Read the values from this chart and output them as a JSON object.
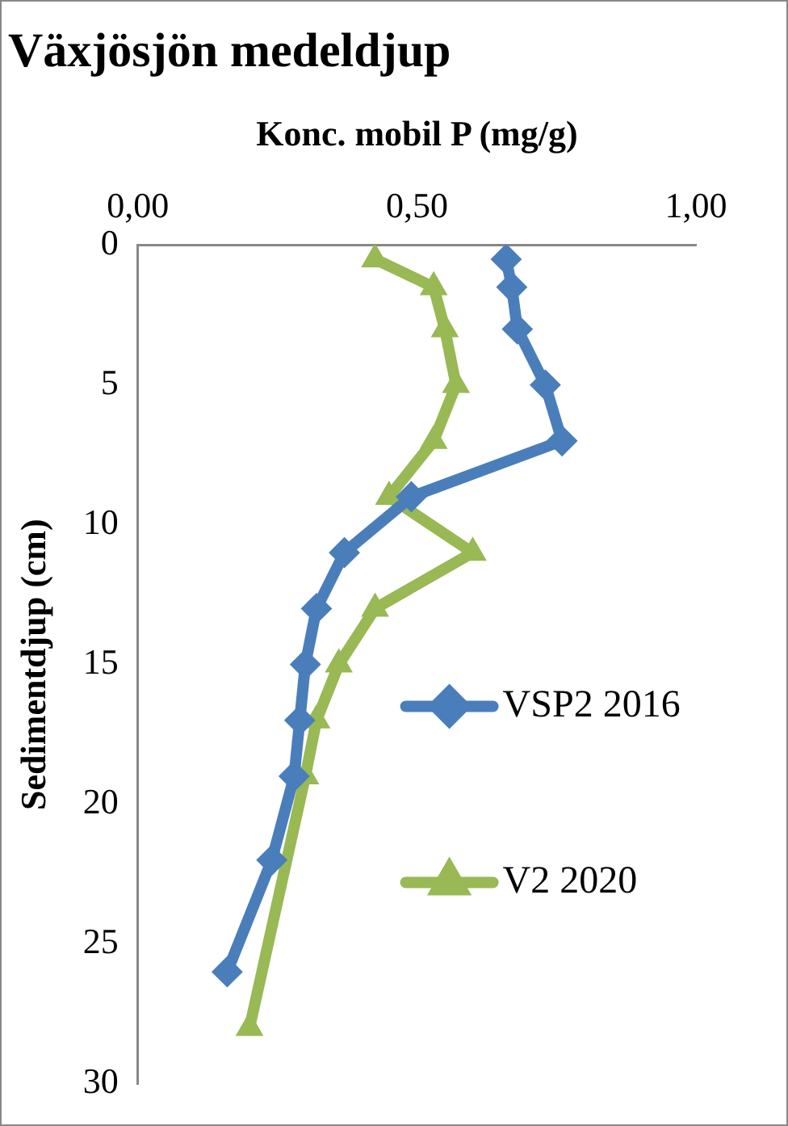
{
  "chart_data": {
    "type": "line",
    "title": "Växjösjön medeldjup",
    "xlabel": "Konc. mobil P (mg/g)",
    "ylabel": "Sedimentdjup (cm)",
    "xlim": [
      0,
      1
    ],
    "xticks": [
      {
        "value": 0,
        "label": "0,00"
      },
      {
        "value": 0.5,
        "label": "0,50"
      },
      {
        "value": 1,
        "label": "1,00"
      }
    ],
    "ylim": [
      30,
      0
    ],
    "yticks": [
      0,
      5,
      10,
      15,
      20,
      25,
      30
    ],
    "grid": false,
    "legend": "right",
    "line_style": "solid",
    "series": [
      {
        "name": "VSP2 2016",
        "color": "#4a7ebb",
        "marker": "diamond",
        "x": [
          0.66,
          0.67,
          0.68,
          0.73,
          0.76,
          0.49,
          0.37,
          0.32,
          0.3,
          0.29,
          0.28,
          0.24,
          0.16
        ],
        "values": [
          0.5,
          1.5,
          3,
          5,
          7,
          9,
          11,
          13,
          15,
          17,
          19,
          22,
          26
        ]
      },
      {
        "name": "V2 2020",
        "color": "#98b954",
        "marker": "triangle",
        "x": [
          0.425,
          0.53,
          0.55,
          0.57,
          0.53,
          0.45,
          0.6,
          0.425,
          0.36,
          0.32,
          0.3,
          0.2
        ],
        "values": [
          0.5,
          1.5,
          3,
          5,
          7,
          9,
          11,
          13,
          15,
          17,
          19,
          28
        ]
      }
    ]
  }
}
